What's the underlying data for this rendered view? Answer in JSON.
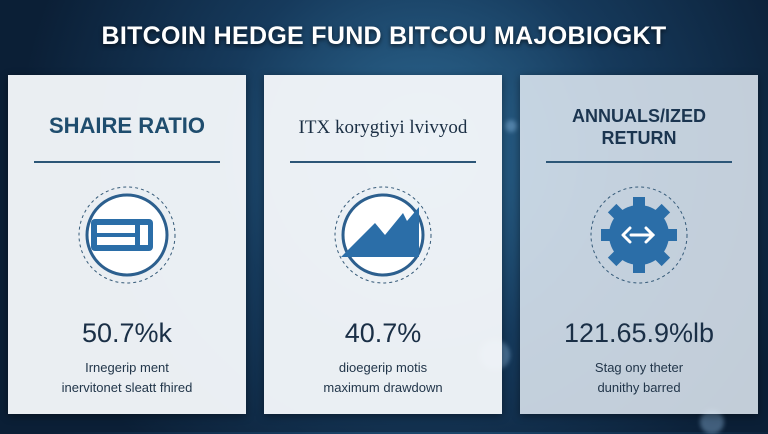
{
  "header": {
    "title": "BITCOIN HEDGE FUND BITCOU MAJOBIOGKT"
  },
  "cards": [
    {
      "heading": [
        "SHAIRE RATIO"
      ],
      "value": "50.7%k",
      "description": [
        "Irnegerip ment",
        "inervitonet sleatt fhired"
      ]
    },
    {
      "heading": [
        "ITX korygtiyi lvivyod"
      ],
      "value": "40.7%",
      "description": [
        "dioegerip motis",
        "maximum drawdown"
      ]
    },
    {
      "heading": [
        "ANNUALS/IZED",
        "RETURN"
      ],
      "value": "121.65.9%lb",
      "description": [
        "Stag ony theter",
        "dunithy barred"
      ]
    }
  ]
}
